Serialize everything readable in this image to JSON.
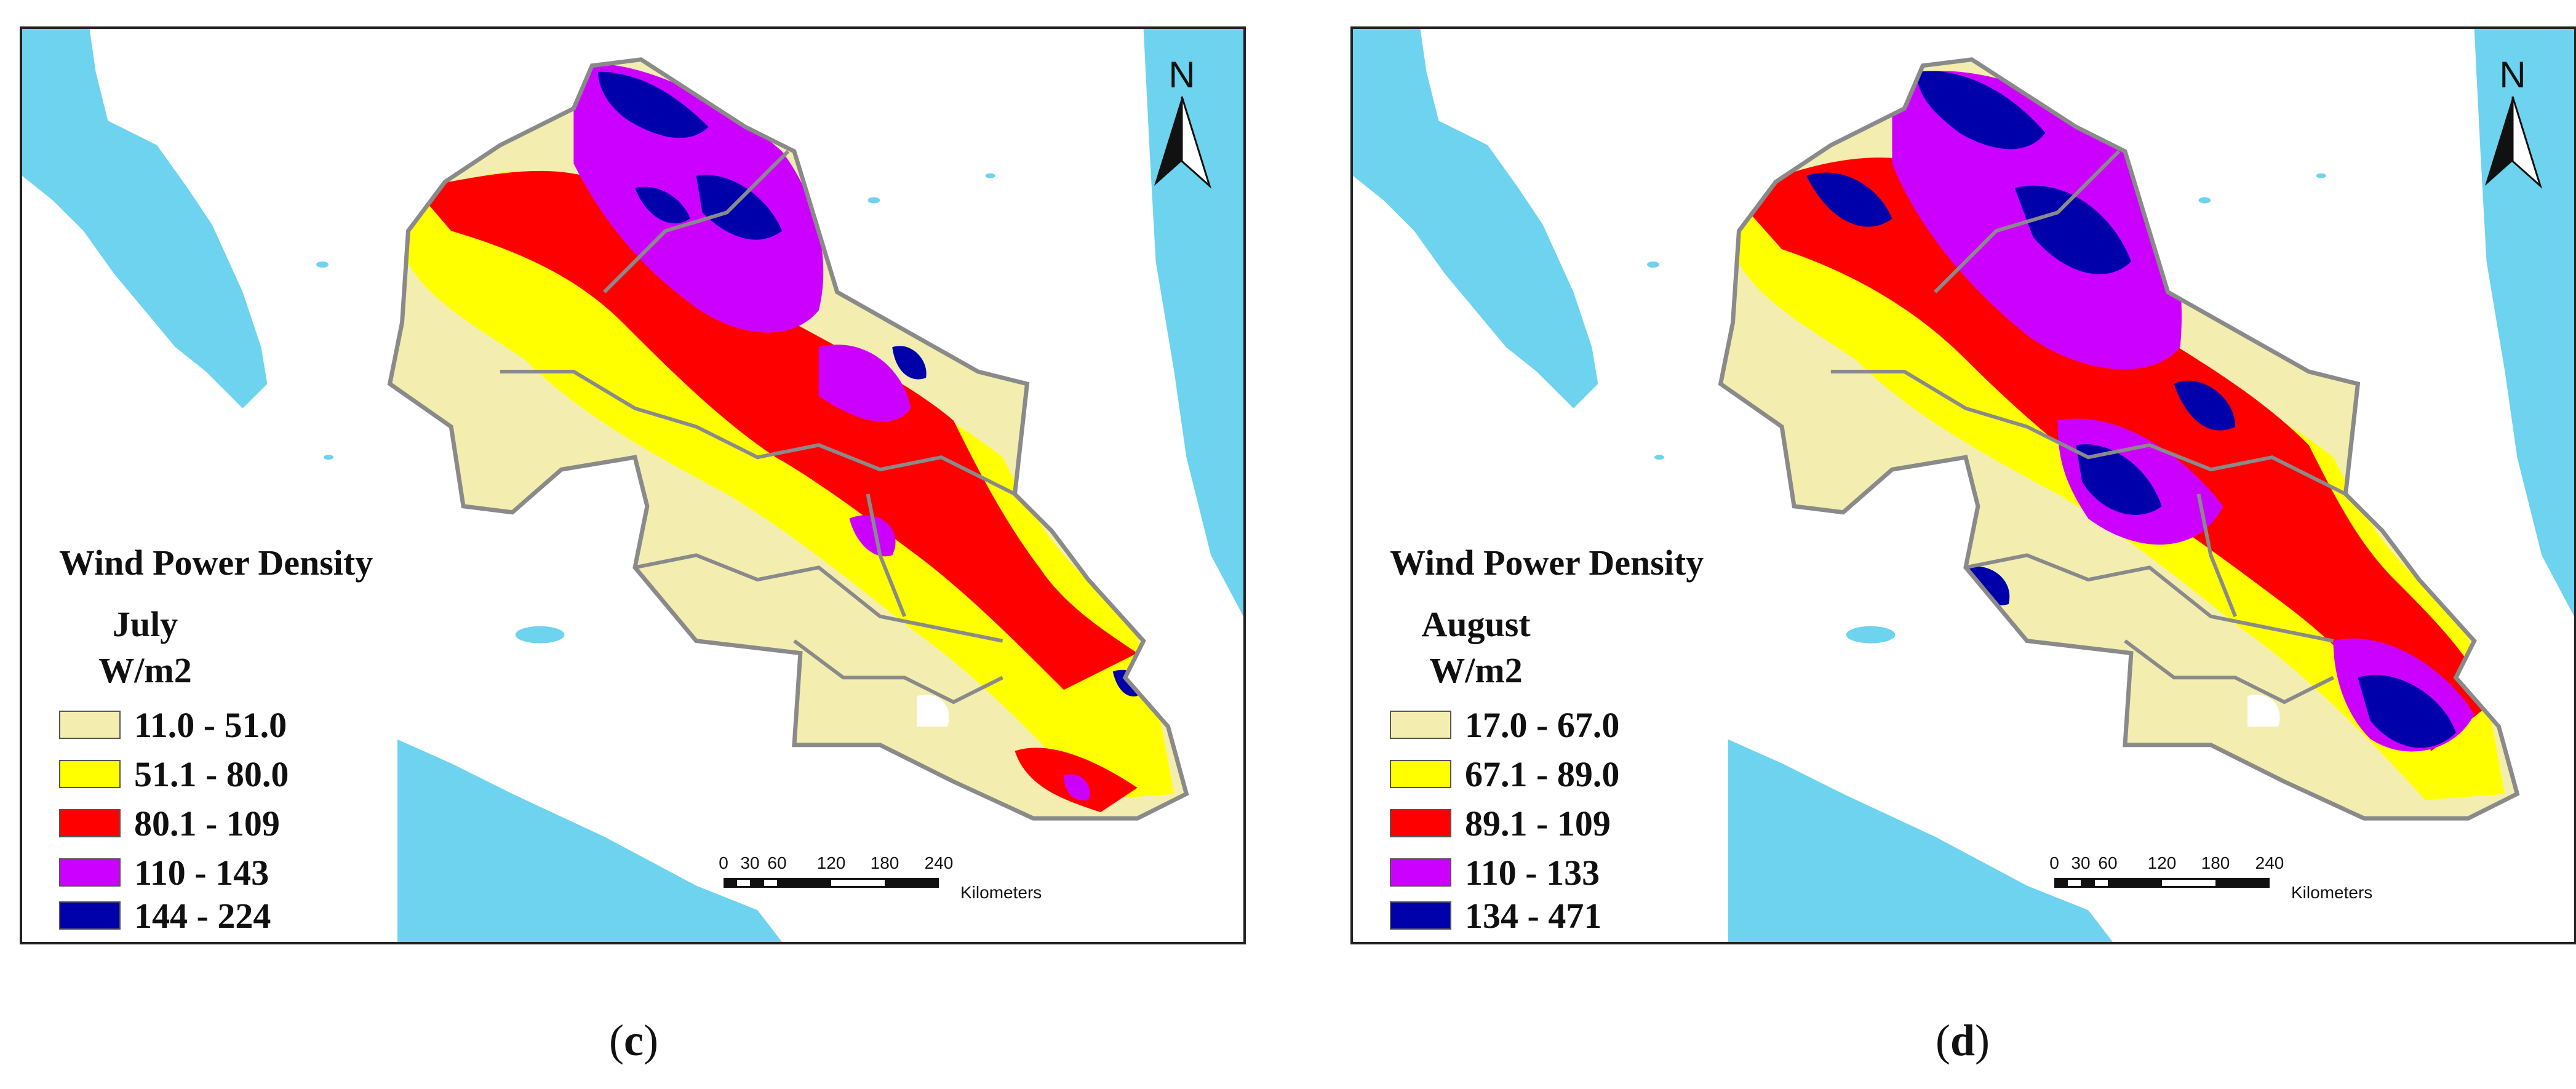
{
  "panels": [
    {
      "id": "c",
      "caption_open": "(",
      "caption_letter": "c",
      "caption_close": ")",
      "legend": {
        "title": "Wind Power Density",
        "month": "July",
        "unit": "W/m2",
        "classes": [
          {
            "label": "11.0 - 51.0",
            "color": "#f3eeb0"
          },
          {
            "label": "51.1 - 80.0",
            "color": "#ffff00"
          },
          {
            "label": "80.1 - 109",
            "color": "#ff0000"
          },
          {
            "label": "110 - 143",
            "color": "#cc00ff"
          },
          {
            "label": "144 - 224",
            "color": "#0000aa"
          }
        ]
      },
      "north_label": "N",
      "scale": {
        "ticks": [
          "0",
          "30",
          "60",
          "120",
          "180",
          "240"
        ],
        "unit": "Kilometers"
      }
    },
    {
      "id": "d",
      "caption_open": "(",
      "caption_letter": "d",
      "caption_close": ")",
      "legend": {
        "title": "Wind Power Density",
        "month": "August",
        "unit": "W/m2",
        "classes": [
          {
            "label": "17.0 - 67.0",
            "color": "#f3eeb0"
          },
          {
            "label": "67.1 - 89.0",
            "color": "#ffff00"
          },
          {
            "label": "89.1 - 109",
            "color": "#ff0000"
          },
          {
            "label": "110 - 133",
            "color": "#cc00ff"
          },
          {
            "label": "134 - 471",
            "color": "#0000aa"
          }
        ]
      },
      "north_label": "N",
      "scale": {
        "ticks": [
          "0",
          "30",
          "60",
          "120",
          "180",
          "240"
        ],
        "unit": "Kilometers"
      }
    }
  ],
  "colors": {
    "ocean": "#6dd3ee",
    "land": "#ffffff",
    "boundary": "#8a8a8a"
  }
}
